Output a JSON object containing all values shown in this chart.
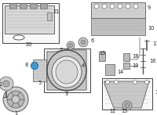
{
  "bg_color": "#ffffff",
  "lc": "#444444",
  "label_color": "#222222",
  "highlight_color": "#4499cc",
  "fs": 4.8,
  "fig_w": 2.0,
  "fig_h": 1.47,
  "dpi": 100
}
